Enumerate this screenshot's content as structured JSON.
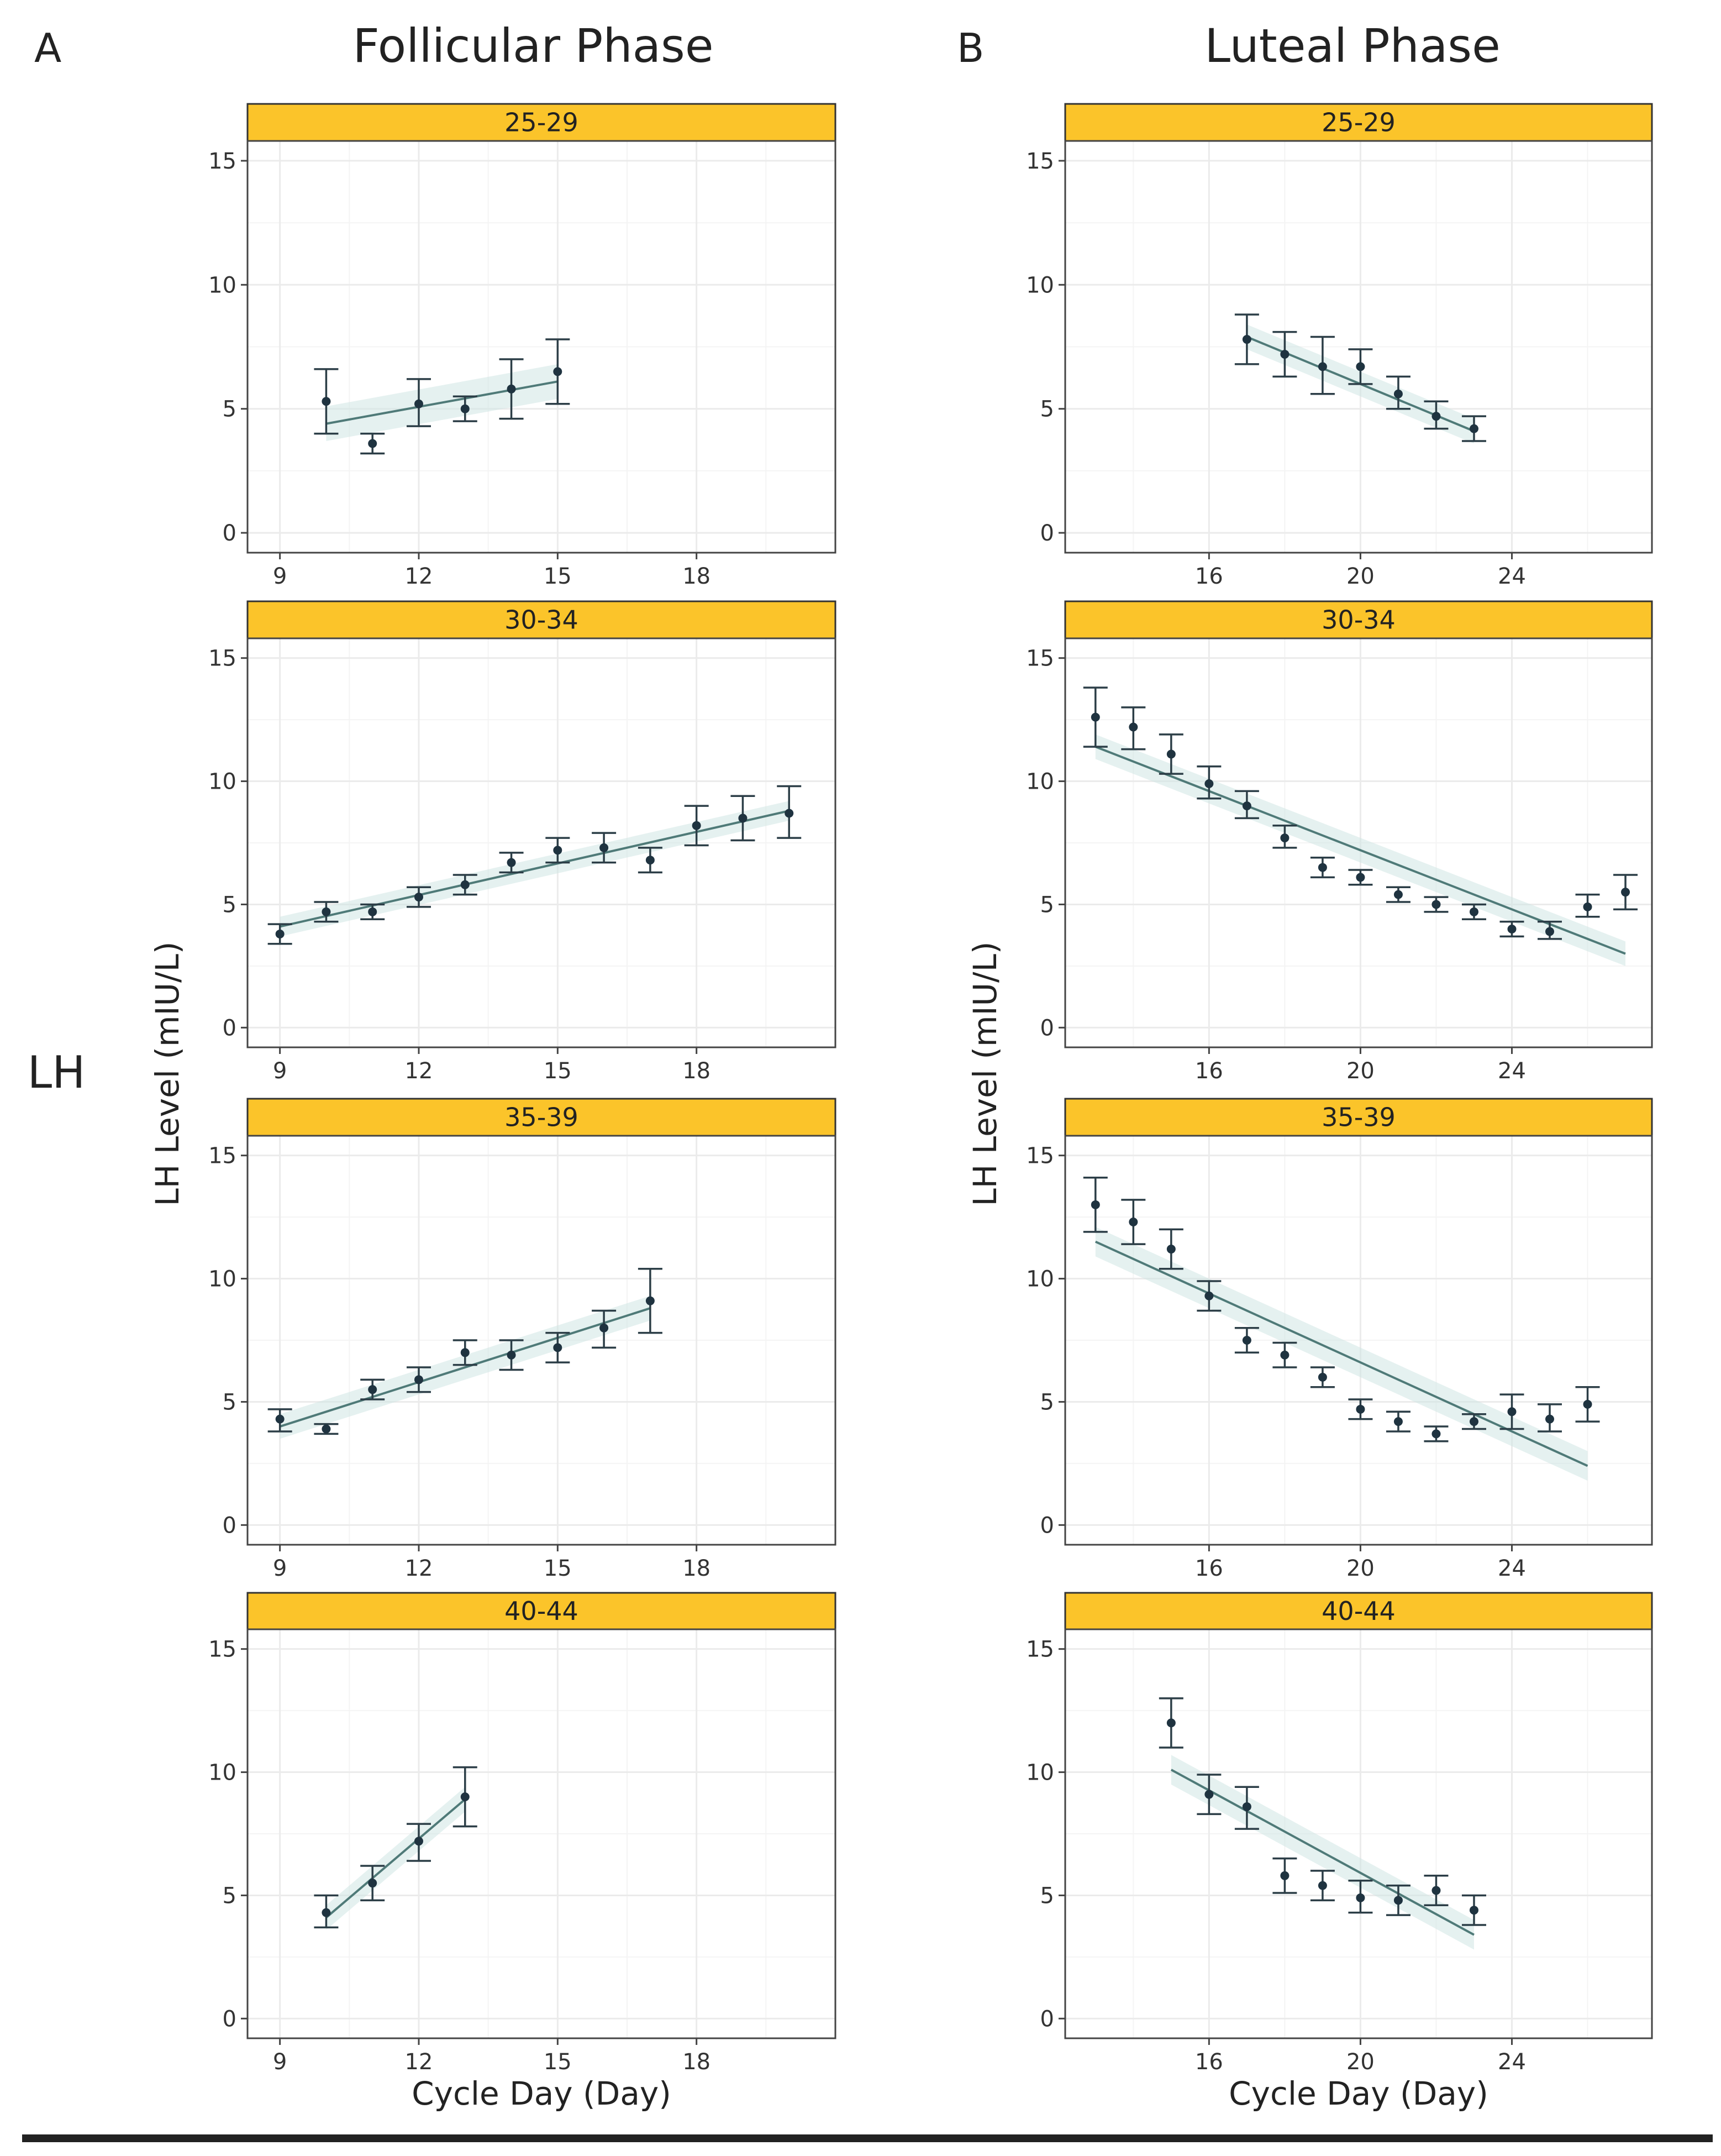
{
  "figure": {
    "panel_letters": [
      "A",
      "B"
    ],
    "column_titles": [
      "Follicular Phase",
      "Luteal Phase"
    ],
    "row_label": "LH"
  },
  "colors": {
    "strip": "#fbc42a",
    "strip_border": "#333333",
    "band": "#cfe6e3",
    "line": "#4f7a78",
    "point": "#1f3340",
    "errorbar": "#2c3e47",
    "grid": "#ebebeb",
    "frame": "#444444"
  },
  "chart_data": [
    {
      "type": "scatter",
      "panel": "A",
      "phase": "Follicular Phase",
      "facet": "25-29",
      "xlabel": "Cycle Day (Day)",
      "ylabel": "LH Level (mIU/L)",
      "xlim": [
        8.3,
        21
      ],
      "ylim": [
        -0.8,
        15.8
      ],
      "xticks": [
        9,
        12,
        15,
        18
      ],
      "yticks": [
        0,
        5,
        10,
        15
      ],
      "x": [
        10,
        11,
        12,
        13,
        14,
        15
      ],
      "y": [
        5.3,
        3.6,
        5.2,
        5.0,
        5.8,
        6.5
      ],
      "err_low": [
        4.0,
        3.2,
        4.3,
        4.5,
        4.6,
        5.2
      ],
      "err_high": [
        6.6,
        4.0,
        6.2,
        5.5,
        7.0,
        7.8
      ],
      "fit": {
        "x": [
          10,
          15
        ],
        "y": [
          4.4,
          6.1
        ],
        "band": 0.7
      }
    },
    {
      "type": "scatter",
      "panel": "A",
      "phase": "Follicular Phase",
      "facet": "30-34",
      "xlabel": "Cycle Day (Day)",
      "ylabel": "LH Level (mIU/L)",
      "xlim": [
        8.3,
        21
      ],
      "ylim": [
        -0.8,
        15.8
      ],
      "xticks": [
        9,
        12,
        15,
        18
      ],
      "yticks": [
        0,
        5,
        10,
        15
      ],
      "x": [
        9,
        10,
        11,
        12,
        13,
        14,
        15,
        16,
        17,
        18,
        19,
        20
      ],
      "y": [
        3.8,
        4.7,
        4.7,
        5.3,
        5.8,
        6.7,
        7.2,
        7.3,
        6.8,
        8.2,
        8.5,
        8.7
      ],
      "err_low": [
        3.4,
        4.3,
        4.4,
        4.9,
        5.4,
        6.3,
        6.7,
        6.7,
        6.3,
        7.4,
        7.6,
        7.7
      ],
      "err_high": [
        4.2,
        5.1,
        5.0,
        5.7,
        6.2,
        7.1,
        7.7,
        7.9,
        7.3,
        9.0,
        9.4,
        9.8
      ],
      "fit": {
        "x": [
          9,
          20
        ],
        "y": [
          4.1,
          8.8
        ],
        "band": 0.4
      }
    },
    {
      "type": "scatter",
      "panel": "A",
      "phase": "Follicular Phase",
      "facet": "35-39",
      "xlabel": "Cycle Day (Day)",
      "ylabel": "LH Level (mIU/L)",
      "xlim": [
        8.3,
        21
      ],
      "ylim": [
        -0.8,
        15.8
      ],
      "xticks": [
        9,
        12,
        15,
        18
      ],
      "yticks": [
        0,
        5,
        10,
        15
      ],
      "x": [
        9,
        10,
        11,
        12,
        13,
        14,
        15,
        16,
        17
      ],
      "y": [
        4.3,
        3.9,
        5.5,
        5.9,
        7.0,
        6.9,
        7.2,
        8.0,
        9.1
      ],
      "err_low": [
        3.8,
        3.7,
        5.1,
        5.4,
        6.5,
        6.3,
        6.6,
        7.2,
        7.8
      ],
      "err_high": [
        4.7,
        4.1,
        5.9,
        6.4,
        7.5,
        7.5,
        7.8,
        8.7,
        10.4
      ],
      "fit": {
        "x": [
          9,
          17
        ],
        "y": [
          4.0,
          8.8
        ],
        "band": 0.5
      }
    },
    {
      "type": "scatter",
      "panel": "A",
      "phase": "Follicular Phase",
      "facet": "40-44",
      "xlabel": "Cycle Day (Day)",
      "ylabel": "LH Level (mIU/L)",
      "xlim": [
        8.3,
        21
      ],
      "ylim": [
        -0.8,
        15.8
      ],
      "xticks": [
        9,
        12,
        15,
        18
      ],
      "yticks": [
        0,
        5,
        10,
        15
      ],
      "x": [
        10,
        11,
        12,
        13
      ],
      "y": [
        4.3,
        5.5,
        7.2,
        9.0
      ],
      "err_low": [
        3.7,
        4.8,
        6.4,
        7.8
      ],
      "err_high": [
        5.0,
        6.2,
        7.9,
        10.2
      ],
      "fit": {
        "x": [
          10,
          13
        ],
        "y": [
          4.1,
          8.9
        ],
        "band": 0.5
      }
    },
    {
      "type": "scatter",
      "panel": "B",
      "phase": "Luteal Phase",
      "facet": "25-29",
      "xlabel": "Cycle Day (Day)",
      "ylabel": "LH Level (mIU/L)",
      "xlim": [
        12.2,
        27.7
      ],
      "ylim": [
        -0.8,
        15.8
      ],
      "xticks": [
        16,
        20,
        24
      ],
      "yticks": [
        0,
        5,
        10,
        15
      ],
      "x": [
        17,
        18,
        19,
        20,
        21,
        22,
        23
      ],
      "y": [
        7.8,
        7.2,
        6.7,
        6.7,
        5.6,
        4.7,
        4.2
      ],
      "err_low": [
        6.8,
        6.3,
        5.6,
        6.0,
        5.0,
        4.2,
        3.7
      ],
      "err_high": [
        8.8,
        8.1,
        7.9,
        7.4,
        6.3,
        5.3,
        4.7
      ],
      "fit": {
        "x": [
          17,
          23
        ],
        "y": [
          7.9,
          4.1
        ],
        "band": 0.5
      }
    },
    {
      "type": "scatter",
      "panel": "B",
      "phase": "Luteal Phase",
      "facet": "30-34",
      "xlabel": "Cycle Day (Day)",
      "ylabel": "LH Level (mIU/L)",
      "xlim": [
        12.2,
        27.7
      ],
      "ylim": [
        -0.8,
        15.8
      ],
      "xticks": [
        16,
        20,
        24
      ],
      "yticks": [
        0,
        5,
        10,
        15
      ],
      "x": [
        13,
        14,
        15,
        16,
        17,
        18,
        19,
        20,
        21,
        22,
        23,
        24,
        25,
        26,
        27
      ],
      "y": [
        12.6,
        12.2,
        11.1,
        9.9,
        9.0,
        7.7,
        6.5,
        6.1,
        5.4,
        5.0,
        4.7,
        4.0,
        3.9,
        4.9,
        5.5
      ],
      "err_low": [
        11.4,
        11.3,
        10.3,
        9.3,
        8.5,
        7.3,
        6.1,
        5.8,
        5.1,
        4.7,
        4.4,
        3.7,
        3.6,
        4.5,
        4.8
      ],
      "err_high": [
        13.8,
        13.0,
        11.9,
        10.6,
        9.6,
        8.2,
        6.9,
        6.4,
        5.7,
        5.3,
        5.0,
        4.3,
        4.3,
        5.4,
        6.2
      ],
      "fit": {
        "x": [
          13,
          27
        ],
        "y": [
          11.4,
          3.0
        ],
        "band": 0.5
      }
    },
    {
      "type": "scatter",
      "panel": "B",
      "phase": "Luteal Phase",
      "facet": "35-39",
      "xlabel": "Cycle Day (Day)",
      "ylabel": "LH Level (mIU/L)",
      "xlim": [
        12.2,
        27.7
      ],
      "ylim": [
        -0.8,
        15.8
      ],
      "xticks": [
        16,
        20,
        24
      ],
      "yticks": [
        0,
        5,
        10,
        15
      ],
      "x": [
        13,
        14,
        15,
        16,
        17,
        18,
        19,
        20,
        21,
        22,
        23,
        24,
        25,
        26
      ],
      "y": [
        13.0,
        12.3,
        11.2,
        9.3,
        7.5,
        6.9,
        6.0,
        4.7,
        4.2,
        3.7,
        4.2,
        4.6,
        4.3,
        4.9
      ],
      "err_low": [
        11.9,
        11.4,
        10.4,
        8.7,
        7.0,
        6.4,
        5.6,
        4.3,
        3.8,
        3.4,
        3.9,
        3.9,
        3.8,
        4.2
      ],
      "err_high": [
        14.1,
        13.2,
        12.0,
        9.9,
        8.0,
        7.4,
        6.4,
        5.1,
        4.6,
        4.0,
        4.5,
        5.3,
        4.9,
        5.6
      ],
      "fit": {
        "x": [
          13,
          26
        ],
        "y": [
          11.5,
          2.4
        ],
        "band": 0.6
      }
    },
    {
      "type": "scatter",
      "panel": "B",
      "phase": "Luteal Phase",
      "facet": "40-44",
      "xlabel": "Cycle Day (Day)",
      "ylabel": "LH Level (mIU/L)",
      "xlim": [
        12.2,
        27.7
      ],
      "ylim": [
        -0.8,
        15.8
      ],
      "xticks": [
        16,
        20,
        24
      ],
      "yticks": [
        0,
        5,
        10,
        15
      ],
      "x": [
        15,
        16,
        17,
        18,
        19,
        20,
        21,
        22,
        23
      ],
      "y": [
        12.0,
        9.1,
        8.6,
        5.8,
        5.4,
        4.9,
        4.8,
        5.2,
        4.4
      ],
      "err_low": [
        11.0,
        8.3,
        7.7,
        5.1,
        4.8,
        4.3,
        4.2,
        4.6,
        3.8
      ],
      "err_high": [
        13.0,
        9.9,
        9.4,
        6.5,
        6.0,
        5.6,
        5.4,
        5.8,
        5.0
      ],
      "fit": {
        "x": [
          15,
          23
        ],
        "y": [
          10.1,
          3.4
        ],
        "band": 0.6
      }
    }
  ]
}
